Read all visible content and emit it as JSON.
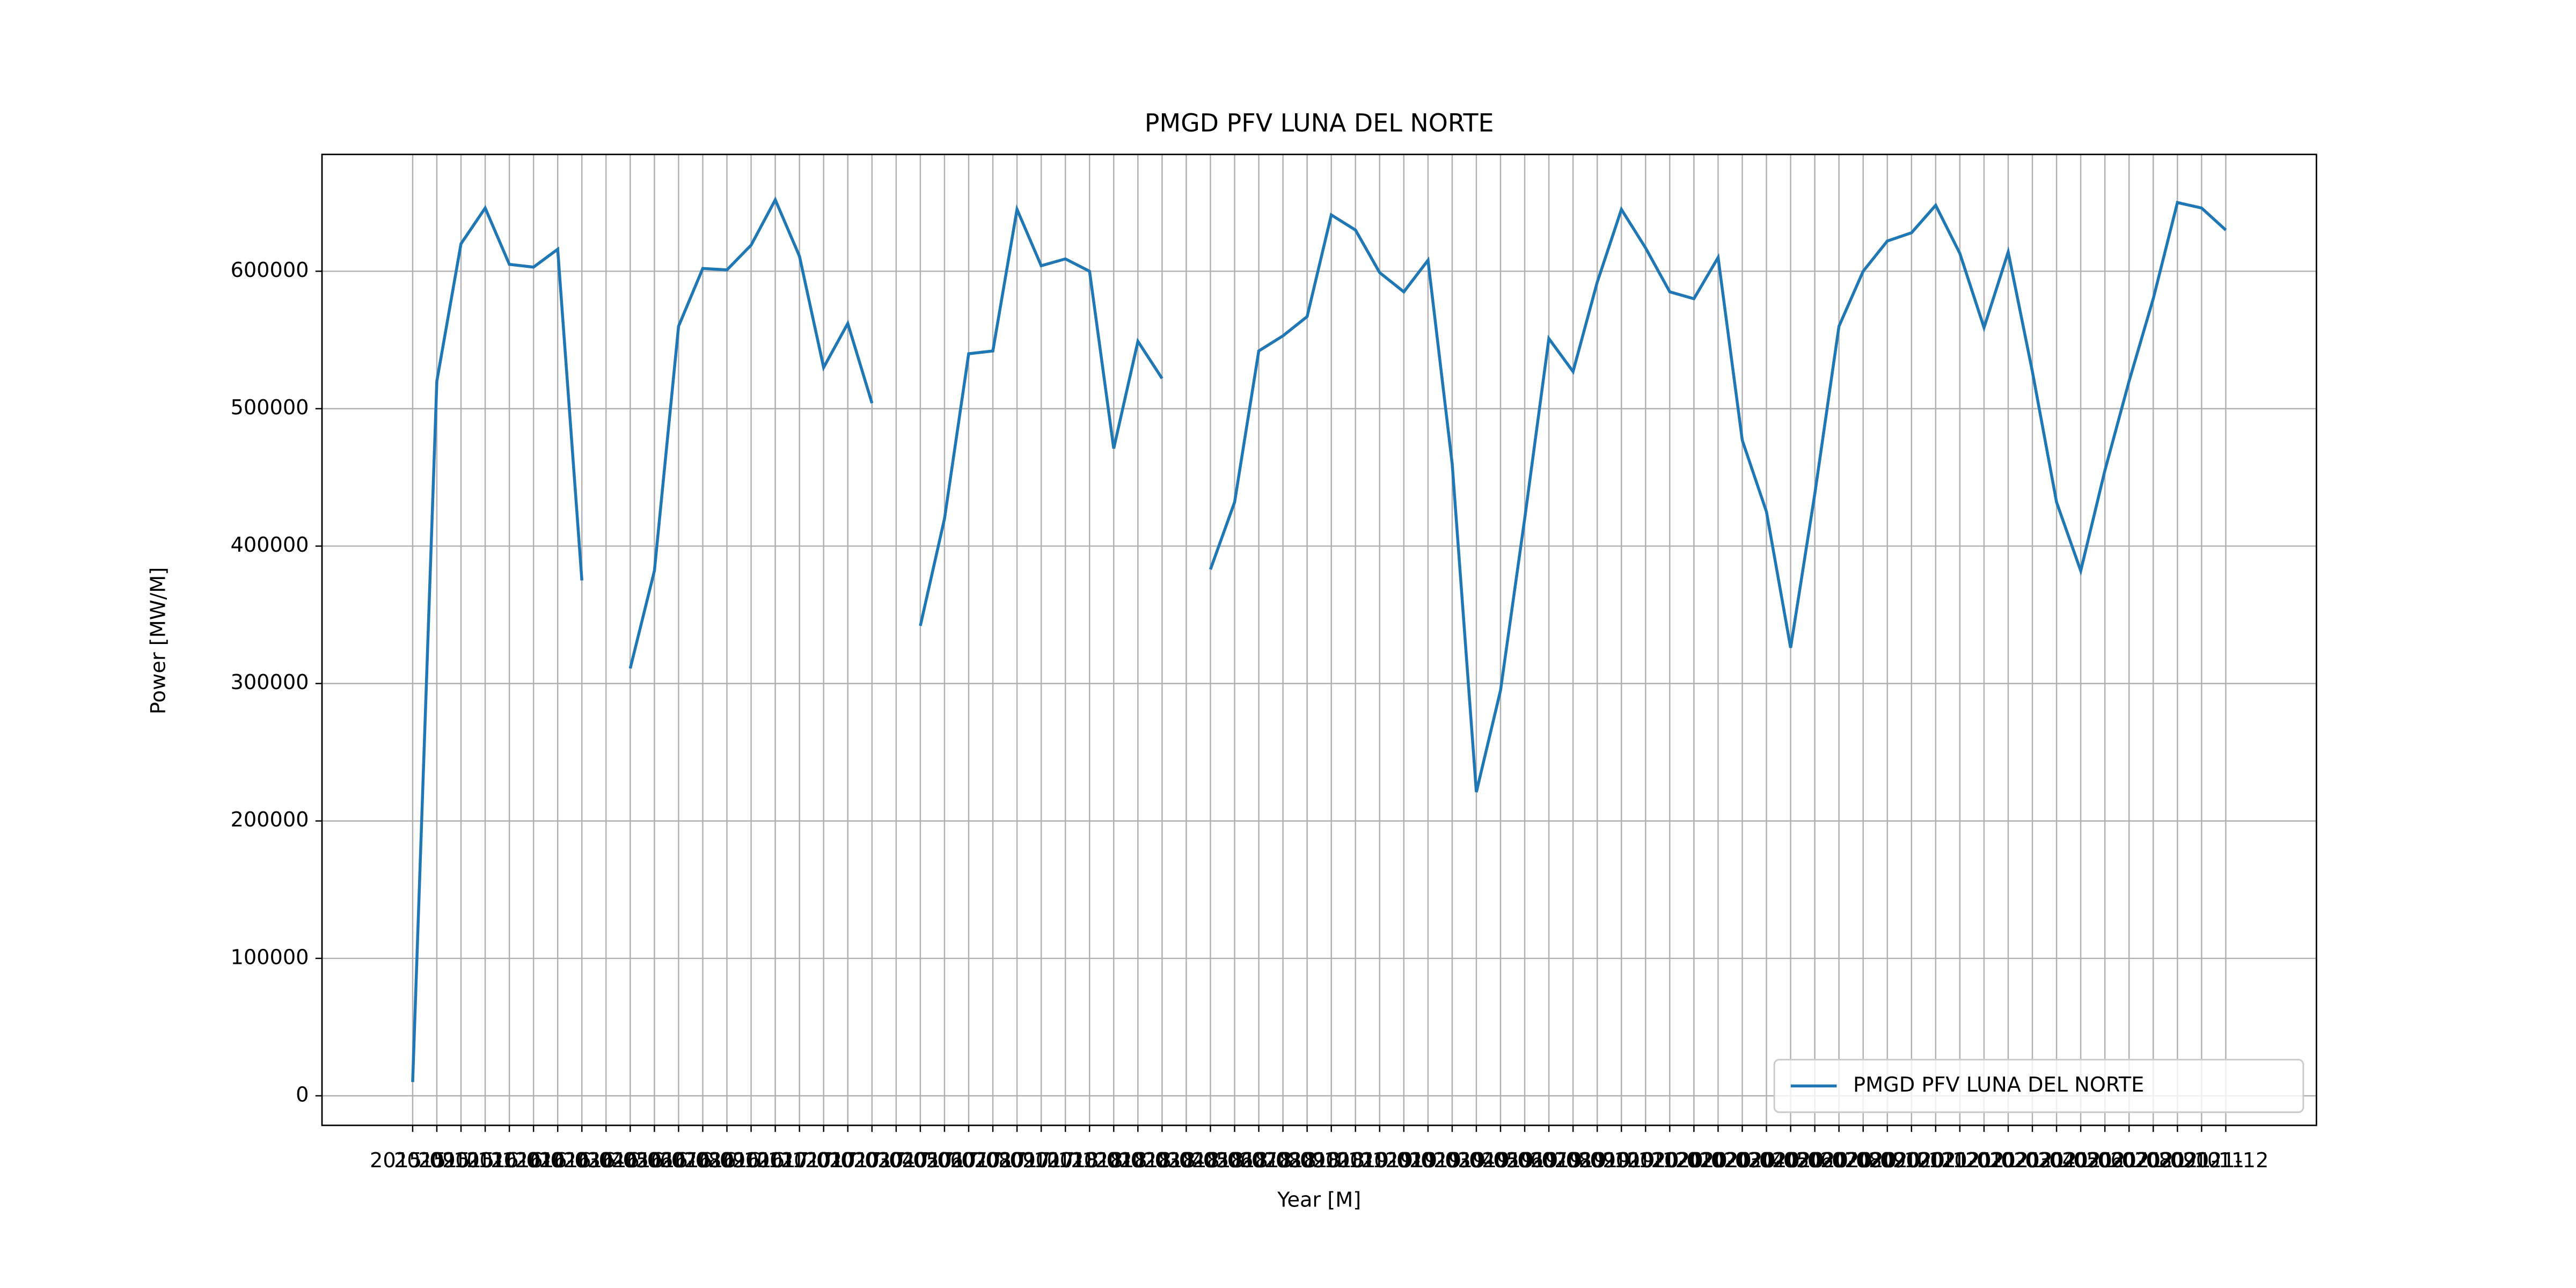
{
  "chart_data": {
    "type": "line",
    "title": "PMGD PFV LUNA DEL NORTE",
    "xlabel": "Year [M]",
    "ylabel": "Power [MW/M]",
    "categories": [
      "2015-09",
      "2015-10",
      "2015-11",
      "2015-12",
      "2016-01",
      "2016-02",
      "2016-03",
      "2016-04",
      "2016-05",
      "2016-06",
      "2016-07",
      "2016-08",
      "2016-09",
      "2016-10",
      "2016-11",
      "2016-12",
      "2017-01",
      "2017-02",
      "2017-03",
      "2017-04",
      "2017-05",
      "2017-06",
      "2017-07",
      "2017-08",
      "2017-09",
      "2017-10",
      "2017-11",
      "2017-12",
      "2018-01",
      "2018-02",
      "2018-03",
      "2018-04",
      "2018-05",
      "2018-06",
      "2018-07",
      "2018-08",
      "2018-09",
      "2018-10",
      "2018-11",
      "2018-12",
      "2019-01",
      "2019-02",
      "2019-03",
      "2019-04",
      "2019-05",
      "2019-06",
      "2019-07",
      "2019-08",
      "2019-09",
      "2019-10",
      "2019-11",
      "2019-12",
      "2020-01",
      "2020-02",
      "2020-03",
      "2020-04",
      "2020-05",
      "2020-06",
      "2020-07",
      "2020-08",
      "2020-09",
      "2020-10",
      "2020-11",
      "2020-12",
      "2021-01",
      "2021-02",
      "2021-03",
      "2021-04",
      "2021-05",
      "2021-06",
      "2021-07",
      "2021-08",
      "2021-09",
      "2021-10",
      "2021-11",
      "2021-12"
    ],
    "series": [
      {
        "name": "PMGD PFV LUNA DEL NORTE",
        "color": "#1f77b4",
        "values": [
          10000,
          520000,
          620000,
          646000,
          605000,
          603000,
          616000,
          375000,
          null,
          311000,
          382000,
          560000,
          602000,
          601000,
          619000,
          652000,
          611000,
          530000,
          562000,
          504000,
          null,
          342000,
          420000,
          540000,
          542000,
          645000,
          604000,
          609000,
          600000,
          471000,
          549000,
          522000,
          null,
          383000,
          432000,
          542000,
          553000,
          567000,
          641000,
          630000,
          599000,
          585000,
          608000,
          460000,
          221000,
          295000,
          420000,
          551000,
          527000,
          592000,
          645000,
          617000,
          585000,
          580000,
          610000,
          477000,
          425000,
          326000,
          438000,
          560000,
          600000,
          622000,
          628000,
          648000,
          613000,
          559000,
          614000,
          527000,
          432000,
          382000,
          455000,
          520000,
          580000,
          650000,
          646000,
          630000
        ]
      }
    ],
    "ylim": [
      -21500,
      685000
    ],
    "yticks": [
      0,
      100000,
      200000,
      300000,
      400000,
      500000,
      600000
    ],
    "grid": true,
    "legend": "lower right"
  }
}
